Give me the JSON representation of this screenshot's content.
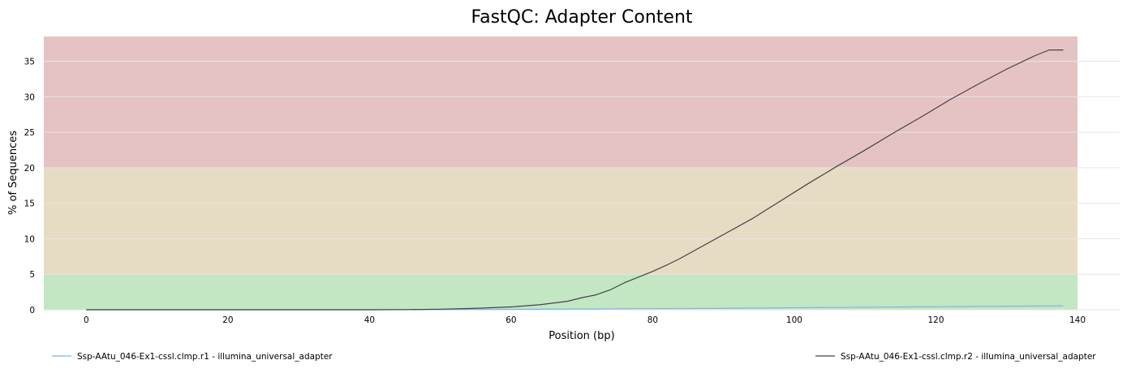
{
  "chart_data": {
    "type": "line",
    "title": "FastQC: Adapter Content",
    "xlabel": "Position (bp)",
    "ylabel": "% of Sequences",
    "xlim": [
      -6,
      140
    ],
    "ylim": [
      0,
      38.5
    ],
    "xticks": [
      0,
      20,
      40,
      60,
      80,
      100,
      120,
      140
    ],
    "yticks": [
      0,
      5,
      10,
      15,
      20,
      25,
      30,
      35
    ],
    "grid": true,
    "legend_position": "bottom",
    "background_bands": [
      {
        "from": 0,
        "to": 5,
        "color": "#c3e6c3"
      },
      {
        "from": 5,
        "to": 20,
        "color": "#e6dcc3"
      },
      {
        "from": 20,
        "to": 38.5,
        "color": "#e6c3c3"
      }
    ],
    "series": [
      {
        "name": "Ssp-AAtu_046-Ex1-cssl.clmp.r1 - illumina_universal_adapter",
        "color": "#7cb5ec",
        "x": [
          0,
          20,
          40,
          50,
          60,
          70,
          80,
          90,
          100,
          110,
          120,
          130,
          138
        ],
        "y": [
          0,
          0,
          0,
          0.02,
          0.05,
          0.1,
          0.15,
          0.2,
          0.28,
          0.35,
          0.42,
          0.5,
          0.55
        ]
      },
      {
        "name": "Ssp-AAtu_046-Ex1-cssl.clmp.r2 - illumina_universal_adapter",
        "color": "#434348",
        "x": [
          0,
          20,
          40,
          45,
          50,
          55,
          60,
          64,
          68,
          70,
          72,
          74,
          76,
          78,
          80,
          82,
          84,
          86,
          90,
          94,
          98,
          102,
          106,
          110,
          114,
          118,
          122,
          126,
          130,
          134,
          136,
          138
        ],
        "y": [
          0,
          0,
          0,
          0.02,
          0.08,
          0.2,
          0.4,
          0.7,
          1.2,
          1.7,
          2.1,
          2.8,
          3.8,
          4.6,
          5.4,
          6.3,
          7.3,
          8.4,
          10.6,
          12.8,
          15.3,
          17.8,
          20.2,
          22.5,
          24.9,
          27.2,
          29.6,
          31.8,
          33.9,
          35.8,
          36.6,
          36.6
        ]
      }
    ]
  }
}
